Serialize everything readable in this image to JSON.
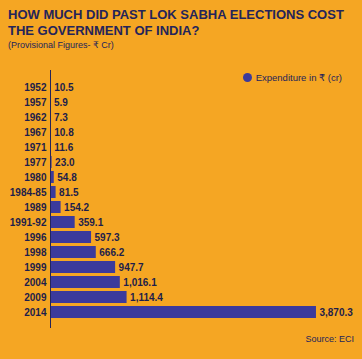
{
  "chart_data": {
    "type": "bar",
    "orientation": "horizontal",
    "title": "HOW MUCH DID PAST LOK SABHA ELECTIONS COST THE GOVERNMENT OF INDIA?",
    "subtitle": "(Provisional Figures- ₹ Cr)",
    "source": "Source: ECI",
    "categories": [
      "1952",
      "1957",
      "1962",
      "1967",
      "1971",
      "1977",
      "1980",
      "1984-85",
      "1989",
      "1991-92",
      "1996",
      "1998",
      "1999",
      "2004",
      "2009",
      "2014"
    ],
    "series": [
      {
        "name": "Expenditure in ₹ (cr)",
        "color": "#3b3a9c",
        "values": [
          10.5,
          5.9,
          7.3,
          10.8,
          11.6,
          23.0,
          54.8,
          81.5,
          154.2,
          359.1,
          597.3,
          666.2,
          947.7,
          1016.1,
          1114.4,
          3870.3
        ],
        "value_labels": [
          "10.5",
          "5.9",
          "7.3",
          "10.8",
          "11.6",
          "23.0",
          "54.8",
          "81.5",
          "154.2",
          "359.1",
          "597.3",
          "666.2",
          "947.7",
          "1,016.1",
          "1,114.4",
          "3,870.3"
        ]
      }
    ],
    "xlim": [
      0,
      3900
    ],
    "xticks": [],
    "data_labels": true,
    "tick_labels": "y",
    "legend": "top-right",
    "grid": false
  }
}
